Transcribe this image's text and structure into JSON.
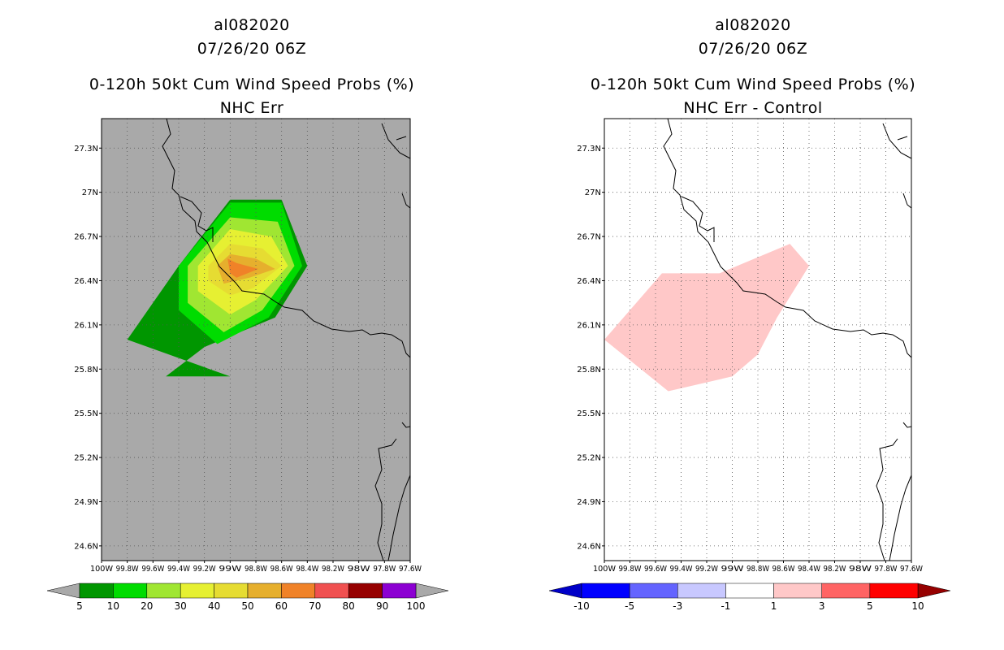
{
  "chart_data": [
    {
      "type": "filled-contour-map",
      "title": {
        "line1": "al082020",
        "line2": "07/26/20 06Z",
        "line3": "0-120h 50kt Cum Wind Speed Probs (%)",
        "line4": "NHC Err"
      },
      "lon_range": [
        -100,
        -97.6
      ],
      "lat_range": [
        24.5,
        27.5
      ],
      "lon_ticks": [
        "100W",
        "99.8W",
        "99.6W",
        "99.4W",
        "99.2W",
        "99W",
        "98.8W",
        "98.6W",
        "98.4W",
        "98.2W",
        "98W",
        "97.8W",
        "97.6W"
      ],
      "lat_ticks": [
        "24.6N",
        "24.9N",
        "25.2N",
        "25.5N",
        "25.8N",
        "26.1N",
        "26.4N",
        "26.7N",
        "27N",
        "27.3N"
      ],
      "background_color": "#a9a9a9",
      "colorbar": {
        "levels": [
          "5",
          "10",
          "20",
          "30",
          "40",
          "50",
          "60",
          "70",
          "80",
          "90",
          "100"
        ],
        "colors": [
          "#009600",
          "#00dc00",
          "#a0e632",
          "#e6f032",
          "#e6dc32",
          "#e6af2d",
          "#f08228",
          "#f05050",
          "#960000",
          "#8c00d2"
        ]
      },
      "contours": [
        {
          "level": "5-10",
          "color": "#009600",
          "points": [
            [
              -99.8,
              26.0
            ],
            [
              -99.4,
              26.5
            ],
            [
              -99.0,
              26.95
            ],
            [
              -98.6,
              26.95
            ],
            [
              -98.4,
              26.5
            ],
            [
              -98.65,
              26.15
            ],
            [
              -99.2,
              25.95
            ],
            [
              -99.5,
              25.75
            ],
            [
              -99.4,
              25.75
            ],
            [
              -99.0,
              25.75
            ]
          ]
        },
        {
          "level": "10-20",
          "color": "#00dc00",
          "points": [
            [
              -99.4,
              26.5
            ],
            [
              -99.0,
              26.93
            ],
            [
              -98.6,
              26.93
            ],
            [
              -98.44,
              26.5
            ],
            [
              -98.7,
              26.15
            ],
            [
              -99.1,
              25.97
            ],
            [
              -99.4,
              26.2
            ]
          ]
        },
        {
          "level": "20-30",
          "color": "#a0e632",
          "points": [
            [
              -99.33,
              26.5
            ],
            [
              -99.0,
              26.83
            ],
            [
              -98.63,
              26.8
            ],
            [
              -98.5,
              26.5
            ],
            [
              -98.75,
              26.2
            ],
            [
              -99.05,
              26.05
            ],
            [
              -99.33,
              26.25
            ]
          ]
        },
        {
          "level": "30-40",
          "color": "#e6f032",
          "points": [
            [
              -99.25,
              26.5
            ],
            [
              -99.0,
              26.75
            ],
            [
              -98.68,
              26.7
            ],
            [
              -98.55,
              26.5
            ],
            [
              -98.8,
              26.27
            ],
            [
              -99.0,
              26.17
            ],
            [
              -99.25,
              26.33
            ]
          ]
        },
        {
          "level": "40-50",
          "color": "#e6dc32",
          "points": [
            [
              -99.17,
              26.5
            ],
            [
              -99.0,
              26.65
            ],
            [
              -98.75,
              26.62
            ],
            [
              -98.6,
              26.5
            ],
            [
              -98.82,
              26.35
            ],
            [
              -99.0,
              26.3
            ],
            [
              -99.17,
              26.4
            ]
          ]
        },
        {
          "level": "50-60",
          "color": "#e6af2d",
          "points": [
            [
              -99.1,
              26.5
            ],
            [
              -99.0,
              26.58
            ],
            [
              -98.8,
              26.55
            ],
            [
              -98.65,
              26.48
            ],
            [
              -98.85,
              26.42
            ],
            [
              -99.05,
              26.38
            ]
          ]
        },
        {
          "level": "60-70",
          "color": "#f08228",
          "points": [
            [
              -99.02,
              26.55
            ],
            [
              -98.95,
              26.52
            ],
            [
              -98.78,
              26.48
            ],
            [
              -98.95,
              26.42
            ],
            [
              -99.0,
              26.45
            ]
          ]
        }
      ]
    },
    {
      "type": "filled-contour-map",
      "title": {
        "line1": "al082020",
        "line2": "07/26/20 06Z",
        "line3": "0-120h 50kt Cum Wind Speed Probs (%)",
        "line4": "NHC Err - Control"
      },
      "lon_range": [
        -100,
        -97.6
      ],
      "lat_range": [
        24.5,
        27.5
      ],
      "lon_ticks": [
        "100W",
        "99.8W",
        "99.6W",
        "99.4W",
        "99.2W",
        "99W",
        "98.8W",
        "98.6W",
        "98.4W",
        "98.2W",
        "98W",
        "97.8W",
        "97.6W"
      ],
      "lat_ticks": [
        "24.6N",
        "24.9N",
        "25.2N",
        "25.5N",
        "25.8N",
        "26.1N",
        "26.4N",
        "26.7N",
        "27N",
        "27.3N"
      ],
      "background_color": "#ffffff",
      "colorbar": {
        "levels": [
          "-10",
          "-5",
          "-3",
          "-1",
          "1",
          "3",
          "5",
          "10"
        ],
        "colors": [
          "#0000c8",
          "#0000ff",
          "#6464ff",
          "#c8c8ff",
          "#ffffff",
          "#ffc8c8",
          "#ff6464",
          "#ff0000",
          "#960000"
        ]
      },
      "contours": [
        {
          "level": "1-3",
          "color": "#ffc8c8",
          "points": [
            [
              -100.0,
              26.0
            ],
            [
              -99.55,
              26.45
            ],
            [
              -99.1,
              26.45
            ],
            [
              -98.55,
              26.65
            ],
            [
              -98.4,
              26.5
            ],
            [
              -98.65,
              26.15
            ],
            [
              -98.8,
              25.9
            ],
            [
              -99.0,
              25.75
            ],
            [
              -99.5,
              25.65
            ]
          ]
        }
      ]
    }
  ]
}
